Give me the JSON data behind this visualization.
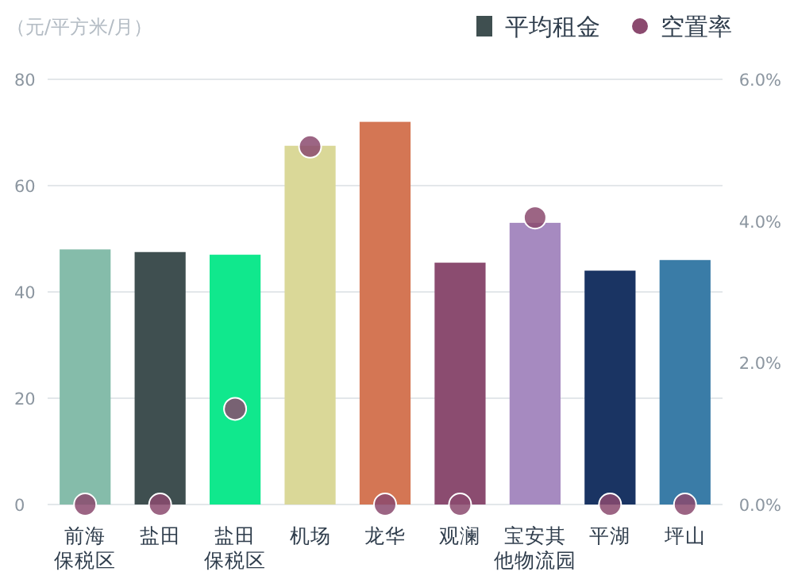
{
  "chart_data": {
    "type": "bar",
    "ylabel": "（元/平方米/月）",
    "categories": [
      "前海保税区",
      "盐田",
      "盐田保税区",
      "机场",
      "龙华",
      "观澜",
      "宝安其他物流园",
      "平湖",
      "坪山"
    ],
    "series": [
      {
        "name": "平均租金",
        "color": "#3f4f50",
        "colors": [
          "#85bcaa",
          "#3f4f50",
          "#10e88d",
          "#dad898",
          "#d47654",
          "#8b4c70",
          "#a68ac0",
          "#1a3463",
          "#3a7ca7"
        ],
        "values": [
          48,
          47.5,
          47,
          67.5,
          72,
          45.5,
          53,
          44,
          46
        ]
      },
      {
        "name": "空置率",
        "type": "scatter",
        "axis": "y2",
        "marker": "circle",
        "color": "#8b4a6f",
        "values": [
          0,
          0,
          1.35,
          5.05,
          0,
          0,
          4.05,
          0,
          0
        ]
      }
    ],
    "ylim": [
      0,
      80
    ],
    "yticks": [
      0,
      20,
      40,
      60,
      80
    ],
    "y2lim": [
      0,
      6
    ],
    "y2ticks": [
      {
        "value": 0,
        "label": "0.0%"
      },
      {
        "value": 2,
        "label": "2.0%"
      },
      {
        "value": 4,
        "label": "4.0%"
      },
      {
        "value": 6,
        "label": "6.0%"
      }
    ],
    "grid": "y",
    "legend": "top right"
  }
}
